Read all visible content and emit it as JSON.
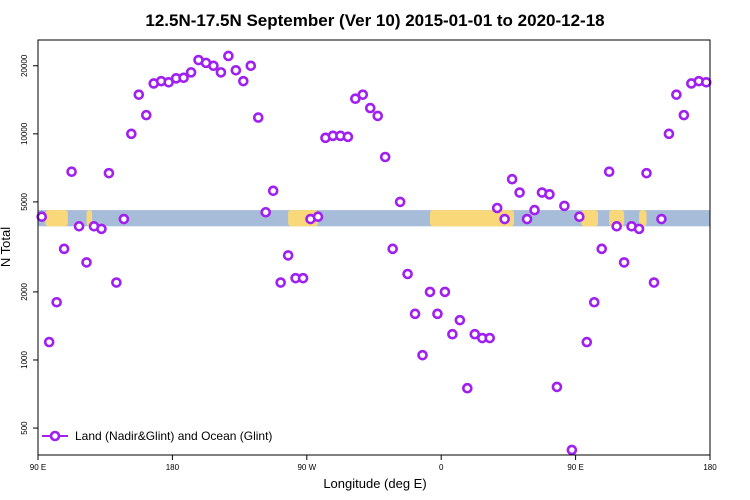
{
  "chart_data": {
    "type": "scatter",
    "title": "12.5N-17.5N September (Ver 10)   2015-01-01 to 2020-12-18",
    "xlabel": "Longitude (deg E)",
    "ylabel": "N Total",
    "y_scale": "log",
    "xlim": [
      90,
      450
    ],
    "ylim": [
      380,
      26000
    ],
    "x_ticks": [
      {
        "value": 90,
        "label": "90 E"
      },
      {
        "value": 162,
        "label": "180"
      },
      {
        "value": 234,
        "label": "90 W"
      },
      {
        "value": 306,
        "label": "0"
      },
      {
        "value": 378,
        "label": "90 E"
      },
      {
        "value": 450,
        "label": "180"
      }
    ],
    "y_ticks": [
      {
        "value": 500,
        "label": "500"
      },
      {
        "value": 1000,
        "label": "1000"
      },
      {
        "value": 2000,
        "label": "2000"
      },
      {
        "value": 5000,
        "label": "5000"
      },
      {
        "value": 10000,
        "label": "10000"
      },
      {
        "value": 20000,
        "label": "20000"
      }
    ],
    "grid": false,
    "legend_position": "bottom-left",
    "colors": {
      "points": "#a020f0",
      "ocean_band": "#a7bcd9",
      "land_band": "#f8d878"
    },
    "band": {
      "y_low": 3900,
      "y_high": 4600,
      "land_segments": [
        [
          94,
          106
        ],
        [
          116,
          119
        ],
        [
          224,
          240
        ],
        [
          300,
          345
        ],
        [
          381,
          390
        ],
        [
          396,
          404
        ],
        [
          412,
          416
        ]
      ]
    },
    "series": [
      {
        "name": "Land (Nadir&Glint) and Ocean (Glint)",
        "x": [
          92,
          96,
          100,
          104,
          108,
          112,
          116,
          120,
          124,
          128,
          132,
          136,
          140,
          144,
          148,
          152,
          156,
          160,
          164,
          168,
          172,
          176,
          180,
          184,
          188,
          192,
          196,
          200,
          204,
          208,
          212,
          216,
          220,
          224,
          228,
          232,
          236,
          240,
          244,
          248,
          252,
          256,
          260,
          264,
          268,
          272,
          276,
          280,
          284,
          288,
          292,
          296,
          300,
          304,
          308,
          312,
          316,
          320,
          324,
          328,
          332,
          336,
          340,
          344,
          348,
          352,
          356,
          360,
          364,
          368,
          372,
          376,
          380,
          384,
          388,
          392,
          396,
          400,
          404,
          408,
          412,
          416,
          420,
          424,
          428,
          432,
          436,
          440,
          444,
          448
        ],
        "y": [
          4300,
          1200,
          1800,
          3100,
          6800,
          3900,
          2700,
          3900,
          3800,
          6700,
          2200,
          4200,
          10000,
          14900,
          12100,
          16700,
          17100,
          16900,
          17600,
          17700,
          18700,
          21200,
          20600,
          20000,
          18700,
          22100,
          19100,
          17100,
          20000,
          11800,
          4500,
          5600,
          2200,
          2900,
          2300,
          2300,
          4200,
          4300,
          9600,
          9800,
          9800,
          9700,
          14300,
          14900,
          13000,
          12000,
          7900,
          3100,
          5000,
          2400,
          1600,
          1050,
          2000,
          1600,
          2000,
          1300,
          1500,
          750,
          1300,
          1250,
          1250,
          4700,
          4200,
          6300,
          5500,
          4200,
          4600,
          5500,
          5400,
          760,
          4800,
          400,
          4300,
          1200,
          1800,
          3100,
          6800,
          3900,
          2700,
          3900,
          3800,
          6700,
          2200,
          4200,
          10000,
          14900,
          12100,
          16700,
          17100,
          16900
        ]
      }
    ]
  }
}
